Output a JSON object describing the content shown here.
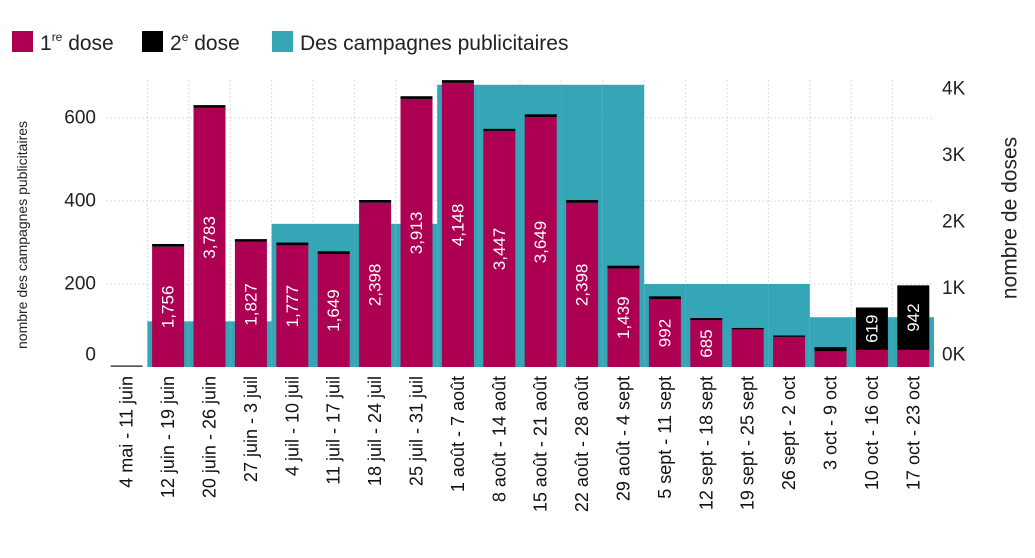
{
  "chart_data": {
    "type": "bar",
    "title": "",
    "legend": {
      "placement": "top-left",
      "items": [
        {
          "label_main": "1",
          "label_sup": "re",
          "label_rest": " dose",
          "color": "#ad0052"
        },
        {
          "label_main": "2",
          "label_sup": "e",
          "label_rest": " dose",
          "color": "#000000"
        },
        {
          "label_main": "Des campagnes publicitaires",
          "label_sup": "",
          "label_rest": "",
          "color": "#35a6b5"
        }
      ]
    },
    "ylabel_left": "nombre des campagnes publicitaires",
    "ylabel_right": "nombre de doses",
    "ylim_left": [
      0,
      700
    ],
    "ylim_right": [
      0,
      4200
    ],
    "yticks_left": [
      {
        "v": 0,
        "label": "0"
      },
      {
        "v": 200,
        "label": "200"
      },
      {
        "v": 400,
        "label": "400"
      },
      {
        "v": 600,
        "label": "600"
      }
    ],
    "yticks_right": [
      {
        "v": 0,
        "label": "0K"
      },
      {
        "v": 1000,
        "label": "1K"
      },
      {
        "v": 2000,
        "label": "2K"
      },
      {
        "v": 3000,
        "label": "3K"
      },
      {
        "v": 4000,
        "label": "4K"
      }
    ],
    "grid": true,
    "categories": [
      "4 mai - 11 juin",
      "12 juin - 19 juin",
      "20 juin - 26 juin",
      "27 juin - 3 juil",
      "4 juil - 10 juil",
      "11 juil - 17 juil",
      "18 juil - 24 juil",
      "25 juil - 31 juil",
      "1 août - 7 août",
      "8 août - 14 août",
      "15 août - 21 août",
      "22 août - 28 août",
      "29 août - 4 sept",
      "5 sept - 11 sept",
      "12 sept - 18 sept",
      "19 sept - 25 sept",
      "26 sept - 2 oct",
      "3 oct - 9 oct",
      "10 oct - 16 oct",
      "17 oct - 23 oct"
    ],
    "series": [
      {
        "name": "1re dose",
        "axis": "right",
        "color": "#ad0052",
        "values": [
          15,
          1756,
          3783,
          1827,
          1777,
          1649,
          2398,
          3913,
          4148,
          3447,
          3649,
          2398,
          1439,
          992,
          685,
          550,
          440,
          230,
          250,
          250
        ],
        "labels": [
          "",
          "1,756",
          "3,783",
          "1,827",
          "1,777",
          "1,649",
          "2,398",
          "3,913",
          "4,148",
          "3,447",
          "3,649",
          "2,398",
          "1,439",
          "992",
          "685",
          "",
          "",
          "",
          "",
          ""
        ]
      },
      {
        "name": "2e dose",
        "axis": "right",
        "color": "#000000",
        "values": [
          10,
          40,
          40,
          40,
          40,
          40,
          40,
          40,
          40,
          30,
          40,
          40,
          40,
          40,
          30,
          20,
          20,
          60,
          619,
          942
        ],
        "labels": [
          "",
          "",
          "",
          "",
          "",
          "",
          "",
          "",
          "",
          "",
          "",
          "",
          "",
          "",
          "",
          "",
          "",
          "",
          "619",
          "942"
        ]
      },
      {
        "name": "Des campagnes publicitaires",
        "axis": "left",
        "color": "#35a6b5",
        "values": [
          0,
          110,
          110,
          110,
          345,
          345,
          345,
          345,
          680,
          680,
          680,
          680,
          680,
          200,
          200,
          200,
          200,
          120,
          120,
          120
        ]
      }
    ]
  }
}
